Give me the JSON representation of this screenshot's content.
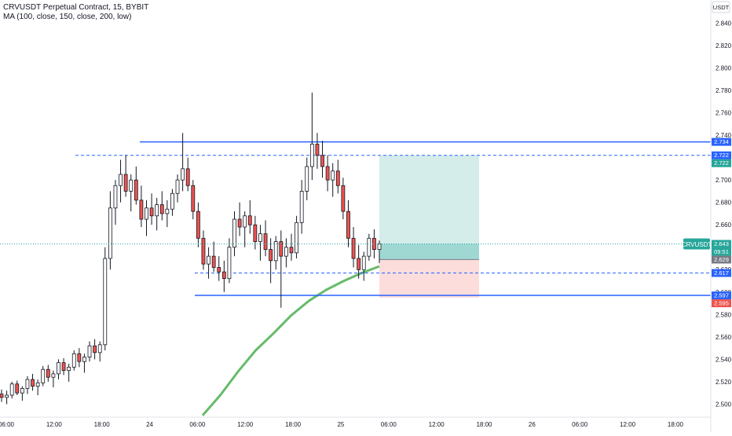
{
  "header": {
    "symbol_line": "CRVUSDT Perpetual Contract, 15, BYBIT",
    "indicator_line": "MA (100, close, 150, close, 200, low)"
  },
  "currency_badge": "USDT",
  "chart_data": {
    "type": "candlestick",
    "title": "CRVUSDT Perpetual Contract, 15, BYBIT",
    "y_axis": {
      "ticks": [
        "2.500",
        "2.520",
        "2.540",
        "2.560",
        "2.580",
        "2.600",
        "2.620",
        "2.640",
        "2.660",
        "2.680",
        "2.700",
        "2.720",
        "2.740",
        "2.760",
        "2.780",
        "2.800",
        "2.820",
        "2.840"
      ],
      "range": [
        2.494,
        2.855
      ]
    },
    "x_axis": {
      "ticks": [
        "06:00",
        "12:00",
        "18:00",
        "24",
        "06:00",
        "12:00",
        "18:00",
        "25",
        "06:00",
        "12:00",
        "18:00",
        "26",
        "06:00",
        "12:00",
        "18:00"
      ]
    },
    "colors": {
      "up": "#26a69a",
      "down": "#ef5350",
      "candle": "#131722",
      "ma": "#66bb6a",
      "level": "#2962ff"
    },
    "price_labels": [
      {
        "text": "2.734",
        "value": 2.734,
        "color": "#2962ff"
      },
      {
        "text": "2.722",
        "value": 2.722,
        "color": "#2962ff"
      },
      {
        "text": "2.722",
        "value": 2.722,
        "color": "#26a69a"
      },
      {
        "text": "2.643",
        "value": 2.643,
        "color": "#26a69a"
      },
      {
        "text": "09:51",
        "value": 2.643,
        "color": "#26a69a"
      },
      {
        "text": "2.629",
        "value": 2.629,
        "color": "#787b86"
      },
      {
        "text": "2.617",
        "value": 2.617,
        "color": "#2962ff"
      },
      {
        "text": "2.597",
        "value": 2.597,
        "color": "#2962ff"
      },
      {
        "text": "2.595",
        "value": 2.595,
        "color": "#ef5350"
      }
    ],
    "last_price_tag": "CRVUSDT",
    "levels": {
      "resistance_solid": 2.734,
      "resistance_dashed": 2.722,
      "support_dashed": 2.617,
      "support_solid": 2.597,
      "last_price": 2.643
    },
    "position": {
      "entry": 2.629,
      "target": 2.722,
      "stop": 2.595,
      "current": 2.643
    },
    "ma_curve": [
      {
        "t": 0.0,
        "v": 2.49
      },
      {
        "t": 0.1,
        "v": 2.508
      },
      {
        "t": 0.2,
        "v": 2.529
      },
      {
        "t": 0.3,
        "v": 2.548
      },
      {
        "t": 0.4,
        "v": 2.563
      },
      {
        "t": 0.5,
        "v": 2.579
      },
      {
        "t": 0.6,
        "v": 2.592
      },
      {
        "t": 0.7,
        "v": 2.602
      },
      {
        "t": 0.8,
        "v": 2.61
      },
      {
        "t": 0.9,
        "v": 2.617
      },
      {
        "t": 1.0,
        "v": 2.623
      }
    ],
    "candles": [
      [
        2.509,
        2.513,
        2.502,
        2.506
      ],
      [
        2.506,
        2.512,
        2.5,
        2.508
      ],
      [
        2.508,
        2.52,
        2.505,
        2.518
      ],
      [
        2.518,
        2.521,
        2.508,
        2.51
      ],
      [
        2.51,
        2.516,
        2.503,
        2.514
      ],
      [
        2.514,
        2.525,
        2.509,
        2.522
      ],
      [
        2.522,
        2.527,
        2.512,
        2.516
      ],
      [
        2.516,
        2.522,
        2.508,
        2.519
      ],
      [
        2.519,
        2.534,
        2.516,
        2.531
      ],
      [
        2.531,
        2.535,
        2.52,
        2.524
      ],
      [
        2.524,
        2.53,
        2.515,
        2.527
      ],
      [
        2.527,
        2.54,
        2.522,
        2.537
      ],
      [
        2.537,
        2.541,
        2.526,
        2.53
      ],
      [
        2.53,
        2.536,
        2.52,
        2.533
      ],
      [
        2.533,
        2.548,
        2.53,
        2.545
      ],
      [
        2.545,
        2.55,
        2.533,
        2.538
      ],
      [
        2.538,
        2.545,
        2.528,
        2.542
      ],
      [
        2.542,
        2.556,
        2.538,
        2.552
      ],
      [
        2.552,
        2.558,
        2.54,
        2.546
      ],
      [
        2.546,
        2.556,
        2.538,
        2.553
      ],
      [
        2.553,
        2.64,
        2.548,
        2.63
      ],
      [
        2.63,
        2.69,
        2.62,
        2.675
      ],
      [
        2.675,
        2.7,
        2.66,
        2.695
      ],
      [
        2.695,
        2.718,
        2.68,
        2.705
      ],
      [
        2.705,
        2.722,
        2.685,
        2.69
      ],
      [
        2.69,
        2.705,
        2.672,
        2.7
      ],
      [
        2.7,
        2.712,
        2.678,
        2.682
      ],
      [
        2.682,
        2.695,
        2.658,
        2.665
      ],
      [
        2.665,
        2.682,
        2.65,
        2.675
      ],
      [
        2.675,
        2.688,
        2.66,
        2.668
      ],
      [
        2.668,
        2.684,
        2.655,
        2.678
      ],
      [
        2.678,
        2.69,
        2.664,
        2.67
      ],
      [
        2.67,
        2.682,
        2.658,
        2.674
      ],
      [
        2.674,
        2.692,
        2.668,
        2.688
      ],
      [
        2.688,
        2.705,
        2.68,
        2.7
      ],
      [
        2.7,
        2.742,
        2.69,
        2.71
      ],
      [
        2.71,
        2.72,
        2.69,
        2.695
      ],
      [
        2.695,
        2.7,
        2.665,
        2.672
      ],
      [
        2.672,
        2.68,
        2.64,
        2.648
      ],
      [
        2.648,
        2.655,
        2.62,
        2.625
      ],
      [
        2.625,
        2.64,
        2.612,
        2.632
      ],
      [
        2.632,
        2.645,
        2.618,
        2.622
      ],
      [
        2.622,
        2.632,
        2.61,
        2.618
      ],
      [
        2.618,
        2.628,
        2.6,
        2.612
      ],
      [
        2.612,
        2.648,
        2.608,
        2.64
      ],
      [
        2.64,
        2.672,
        2.632,
        2.665
      ],
      [
        2.665,
        2.68,
        2.65,
        2.658
      ],
      [
        2.658,
        2.672,
        2.64,
        2.668
      ],
      [
        2.668,
        2.682,
        2.652,
        2.66
      ],
      [
        2.66,
        2.668,
        2.638,
        2.645
      ],
      [
        2.645,
        2.66,
        2.628,
        2.652
      ],
      [
        2.652,
        2.664,
        2.632,
        2.638
      ],
      [
        2.638,
        2.648,
        2.608,
        2.628
      ],
      [
        2.628,
        2.65,
        2.62,
        2.645
      ],
      [
        2.645,
        2.655,
        2.586,
        2.632
      ],
      [
        2.632,
        2.648,
        2.622,
        2.64
      ],
      [
        2.64,
        2.652,
        2.628,
        2.635
      ],
      [
        2.635,
        2.668,
        2.63,
        2.662
      ],
      [
        2.662,
        2.7,
        2.652,
        2.69
      ],
      [
        2.69,
        2.72,
        2.682,
        2.712
      ],
      [
        2.712,
        2.778,
        2.7,
        2.732
      ],
      [
        2.732,
        2.742,
        2.71,
        2.722
      ],
      [
        2.722,
        2.735,
        2.702,
        2.712
      ],
      [
        2.712,
        2.722,
        2.69,
        2.7
      ],
      [
        2.7,
        2.715,
        2.685,
        2.708
      ],
      [
        2.708,
        2.718,
        2.688,
        2.695
      ],
      [
        2.695,
        2.702,
        2.665,
        2.672
      ],
      [
        2.672,
        2.682,
        2.64,
        2.648
      ],
      [
        2.648,
        2.658,
        2.622,
        2.63
      ],
      [
        2.63,
        2.642,
        2.612,
        2.62
      ],
      [
        2.62,
        2.636,
        2.61,
        2.632
      ],
      [
        2.632,
        2.652,
        2.628,
        2.648
      ],
      [
        2.648,
        2.656,
        2.63,
        2.638
      ],
      [
        2.638,
        2.646,
        2.626,
        2.643
      ]
    ]
  }
}
